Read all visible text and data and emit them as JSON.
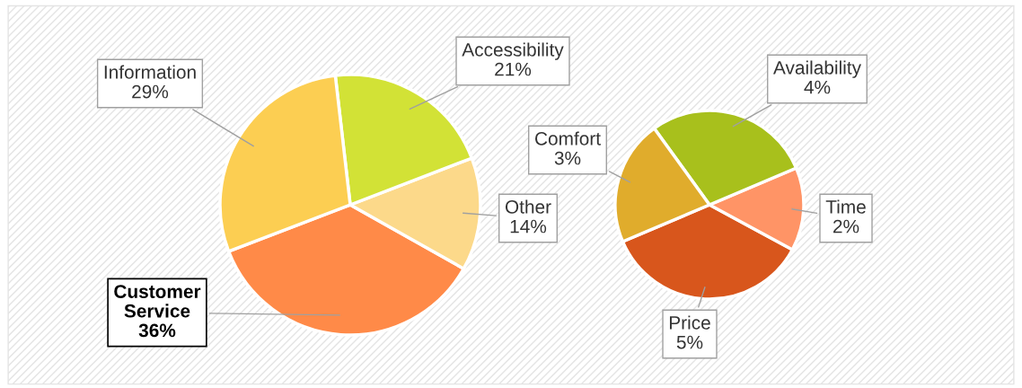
{
  "chart_data": [
    {
      "type": "pie",
      "categories": [
        "Customer Service",
        "Other",
        "Accessibility",
        "Information"
      ],
      "values": [
        36,
        14,
        21,
        29
      ],
      "value_labels": [
        "36%",
        "14%",
        "21%",
        "29%"
      ],
      "colors": [
        "#ff8a48",
        "#fcd98a",
        "#d2e236",
        "#fcce52"
      ]
    },
    {
      "type": "pie",
      "categories": [
        "Price",
        "Time",
        "Availability",
        "Comfort"
      ],
      "values": [
        5,
        2,
        4,
        3
      ],
      "value_labels": [
        "5%",
        "2%",
        "4%",
        "3%"
      ],
      "colors": [
        "#d8561c",
        "#ff9466",
        "#a8c01c",
        "#e0ac2c"
      ]
    }
  ]
}
